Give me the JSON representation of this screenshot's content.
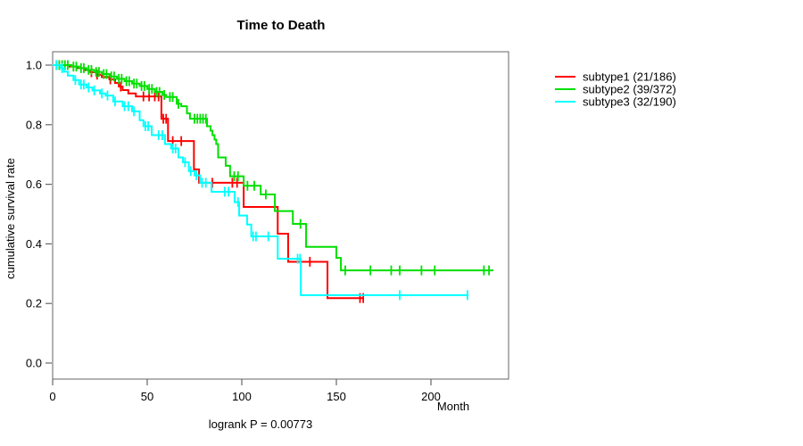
{
  "chart_data": {
    "type": "line",
    "subtype": "kaplan-meier-step-curves",
    "title": "Time to Death",
    "xlabel": "Month",
    "ylabel": "cumulative survival rate",
    "note": "logrank P = 0.00773",
    "grid": false,
    "legend_position": "right-outside",
    "xlim": [
      0,
      241
    ],
    "ylim": [
      0,
      1
    ],
    "x_ticks": [
      {
        "v": 0,
        "label": "0"
      },
      {
        "v": 50,
        "label": "50"
      },
      {
        "v": 100,
        "label": "100"
      },
      {
        "v": 150,
        "label": "150"
      },
      {
        "v": 200,
        "label": "200"
      }
    ],
    "y_ticks": [
      {
        "v": 0.0,
        "label": "0.0"
      },
      {
        "v": 0.2,
        "label": "0.2"
      },
      {
        "v": 0.4,
        "label": "0.4"
      },
      {
        "v": 0.6,
        "label": "0.6"
      },
      {
        "v": 0.8,
        "label": "0.8"
      },
      {
        "v": 1.0,
        "label": "1.0"
      }
    ],
    "axis_color": "#666666",
    "text_color": "#000000",
    "series": [
      {
        "name": "subtype1 (21/186)",
        "color": "#FF0000",
        "end": 164.6,
        "steps": [
          [
            0,
            1.0
          ],
          [
            9,
            0.995
          ],
          [
            13,
            0.99
          ],
          [
            17,
            0.983
          ],
          [
            20,
            0.976
          ],
          [
            23,
            0.968
          ],
          [
            26,
            0.96
          ],
          [
            30,
            0.952
          ],
          [
            33,
            0.94
          ],
          [
            35,
            0.928
          ],
          [
            37,
            0.916
          ],
          [
            40,
            0.905
          ],
          [
            44,
            0.895
          ],
          [
            57.5,
            0.82
          ],
          [
            61,
            0.745
          ],
          [
            74.7,
            0.65
          ],
          [
            77.4,
            0.605
          ],
          [
            101,
            0.524
          ],
          [
            119,
            0.434
          ],
          [
            124.5,
            0.34
          ],
          [
            145.3,
            0.218
          ]
        ],
        "censors": [
          [
            20.5,
            0.976
          ],
          [
            23.5,
            0.968
          ],
          [
            30.5,
            0.952
          ],
          [
            36,
            0.928
          ],
          [
            48,
            0.895
          ],
          [
            51,
            0.895
          ],
          [
            54,
            0.895
          ],
          [
            56,
            0.895
          ],
          [
            58.5,
            0.82
          ],
          [
            60,
            0.82
          ],
          [
            63.5,
            0.745
          ],
          [
            68,
            0.745
          ],
          [
            84.4,
            0.605
          ],
          [
            95,
            0.605
          ],
          [
            97.5,
            0.605
          ],
          [
            136,
            0.34
          ],
          [
            162.5,
            0.218
          ],
          [
            164.2,
            0.218
          ]
        ]
      },
      {
        "name": "subtype2 (39/372)",
        "color": "#00DF00",
        "end": 233,
        "steps": [
          [
            0,
            1.0
          ],
          [
            10,
            0.995
          ],
          [
            14,
            0.99
          ],
          [
            18,
            0.984
          ],
          [
            22,
            0.977
          ],
          [
            26,
            0.97
          ],
          [
            30,
            0.962
          ],
          [
            34,
            0.954
          ],
          [
            38,
            0.946
          ],
          [
            42,
            0.938
          ],
          [
            46,
            0.93
          ],
          [
            50,
            0.92
          ],
          [
            54,
            0.91
          ],
          [
            58,
            0.9
          ],
          [
            60,
            0.893
          ],
          [
            65.6,
            0.87
          ],
          [
            68,
            0.862
          ],
          [
            71,
            0.838
          ],
          [
            72.6,
            0.82
          ],
          [
            81.6,
            0.795
          ],
          [
            83.5,
            0.78
          ],
          [
            84.5,
            0.765
          ],
          [
            85.6,
            0.75
          ],
          [
            86.5,
            0.735
          ],
          [
            87.5,
            0.69
          ],
          [
            91.5,
            0.662
          ],
          [
            93.8,
            0.627
          ],
          [
            101,
            0.595
          ],
          [
            110,
            0.566
          ],
          [
            117.5,
            0.51
          ],
          [
            127,
            0.467
          ],
          [
            134,
            0.39
          ],
          [
            150,
            0.353
          ],
          [
            152.4,
            0.311
          ]
        ],
        "censors": [
          [
            2,
            1.0
          ],
          [
            3.5,
            1.0
          ],
          [
            5,
            1.0
          ],
          [
            6.5,
            1.0
          ],
          [
            8,
            1.0
          ],
          [
            11,
            0.995
          ],
          [
            12.5,
            0.995
          ],
          [
            15,
            0.99
          ],
          [
            16.5,
            0.99
          ],
          [
            19,
            0.984
          ],
          [
            20.5,
            0.984
          ],
          [
            23,
            0.977
          ],
          [
            24.5,
            0.977
          ],
          [
            27,
            0.97
          ],
          [
            28.5,
            0.97
          ],
          [
            31,
            0.962
          ],
          [
            32.5,
            0.962
          ],
          [
            35,
            0.954
          ],
          [
            36.5,
            0.954
          ],
          [
            39,
            0.946
          ],
          [
            40.5,
            0.946
          ],
          [
            43,
            0.938
          ],
          [
            44.5,
            0.938
          ],
          [
            47,
            0.93
          ],
          [
            48.5,
            0.93
          ],
          [
            51,
            0.92
          ],
          [
            52.5,
            0.92
          ],
          [
            55,
            0.91
          ],
          [
            56.5,
            0.91
          ],
          [
            59,
            0.9
          ],
          [
            62,
            0.893
          ],
          [
            63.5,
            0.893
          ],
          [
            66.5,
            0.87
          ],
          [
            75,
            0.82
          ],
          [
            76.5,
            0.82
          ],
          [
            78,
            0.82
          ],
          [
            79.5,
            0.82
          ],
          [
            81,
            0.82
          ],
          [
            96,
            0.627
          ],
          [
            98,
            0.627
          ],
          [
            103,
            0.595
          ],
          [
            106.6,
            0.595
          ],
          [
            112.7,
            0.566
          ],
          [
            131,
            0.467
          ],
          [
            154.7,
            0.311
          ],
          [
            168,
            0.311
          ],
          [
            179,
            0.311
          ],
          [
            183.5,
            0.311
          ],
          [
            195,
            0.311
          ],
          [
            202,
            0.311
          ],
          [
            228,
            0.311
          ],
          [
            230.7,
            0.311
          ]
        ]
      },
      {
        "name": "subtype3 (32/190)",
        "color": "#00FFFF",
        "end": 219.8,
        "steps": [
          [
            0,
            1.0
          ],
          [
            4,
            0.99
          ],
          [
            6,
            0.978
          ],
          [
            8,
            0.965
          ],
          [
            11,
            0.95
          ],
          [
            14,
            0.935
          ],
          [
            18,
            0.925
          ],
          [
            21,
            0.915
          ],
          [
            25,
            0.905
          ],
          [
            28,
            0.898
          ],
          [
            32,
            0.878
          ],
          [
            37,
            0.862
          ],
          [
            42,
            0.845
          ],
          [
            46,
            0.815
          ],
          [
            48,
            0.795
          ],
          [
            52.4,
            0.765
          ],
          [
            59.4,
            0.735
          ],
          [
            62.6,
            0.72
          ],
          [
            66.5,
            0.69
          ],
          [
            68.9,
            0.674
          ],
          [
            72,
            0.644
          ],
          [
            75,
            0.63
          ],
          [
            78,
            0.605
          ],
          [
            84,
            0.575
          ],
          [
            96.2,
            0.54
          ],
          [
            98.6,
            0.495
          ],
          [
            102.8,
            0.465
          ],
          [
            105,
            0.425
          ],
          [
            119,
            0.35
          ],
          [
            131.2,
            0.228
          ]
        ],
        "censors": [
          [
            2,
            1.0
          ],
          [
            5,
            0.99
          ],
          [
            12,
            0.95
          ],
          [
            15,
            0.935
          ],
          [
            16.5,
            0.935
          ],
          [
            19,
            0.925
          ],
          [
            22,
            0.915
          ],
          [
            26,
            0.905
          ],
          [
            29,
            0.898
          ],
          [
            33,
            0.878
          ],
          [
            38,
            0.862
          ],
          [
            40,
            0.862
          ],
          [
            43,
            0.845
          ],
          [
            49,
            0.795
          ],
          [
            50.5,
            0.795
          ],
          [
            56,
            0.765
          ],
          [
            58,
            0.765
          ],
          [
            63.5,
            0.72
          ],
          [
            65,
            0.72
          ],
          [
            70,
            0.674
          ],
          [
            73,
            0.644
          ],
          [
            76,
            0.63
          ],
          [
            79,
            0.605
          ],
          [
            81,
            0.605
          ],
          [
            91,
            0.575
          ],
          [
            93,
            0.575
          ],
          [
            98,
            0.54
          ],
          [
            106,
            0.425
          ],
          [
            107.5,
            0.425
          ],
          [
            114,
            0.425
          ],
          [
            129.5,
            0.35
          ],
          [
            130.8,
            0.35
          ],
          [
            183.5,
            0.228
          ],
          [
            219.3,
            0.228
          ]
        ]
      }
    ]
  }
}
